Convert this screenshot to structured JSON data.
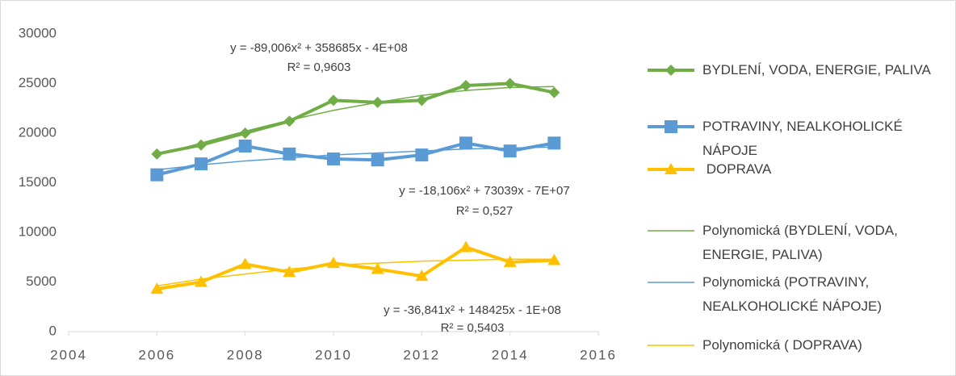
{
  "chart_data": {
    "type": "line",
    "x": [
      2006,
      2007,
      2008,
      2009,
      2010,
      2011,
      2012,
      2013,
      2014,
      2015
    ],
    "xlim": [
      2004,
      2016
    ],
    "xticks": [
      2004,
      2006,
      2008,
      2010,
      2012,
      2014,
      2016
    ],
    "ylim": [
      0,
      30000
    ],
    "yticks": [
      0,
      5000,
      10000,
      15000,
      20000,
      25000,
      30000
    ],
    "grid": false,
    "legend": "right",
    "series": [
      {
        "name": "BYDLENÍ, VODA, ENERGIE, PALIVA",
        "color": "#70ad47",
        "marker": "diamond",
        "values": [
          17900,
          18800,
          20000,
          21200,
          23300,
          23100,
          23300,
          24800,
          25000,
          24100
        ]
      },
      {
        "name": "POTRAVINY, NEALKOHOLICKÉ NÁPOJE",
        "color": "#5b9bd5",
        "marker": "square",
        "values": [
          15800,
          16900,
          18700,
          17900,
          17400,
          17300,
          17800,
          19000,
          18200,
          19000
        ]
      },
      {
        "name": " DOPRAVA",
        "color": "#ffc000",
        "marker": "triangle",
        "values": [
          4300,
          5000,
          6800,
          6000,
          6900,
          6300,
          5600,
          8500,
          7000,
          7200
        ]
      },
      {
        "name": "Polynomická (BYDLENÍ, VODA, ENERGIE, PALIVA)",
        "color": "#70ad47",
        "marker": "none",
        "values": [
          17800,
          19000,
          20200,
          21300,
          22300,
          23100,
          23800,
          24300,
          24600,
          24700
        ]
      },
      {
        "name": "Polynomická (POTRAVINY, NEALKOHOLICKÉ NÁPOJE)",
        "color": "#5b9bd5",
        "marker": "none",
        "values": [
          16300,
          16800,
          17200,
          17500,
          17800,
          18000,
          18200,
          18400,
          18500,
          18600
        ]
      },
      {
        "name": "Polynomická ( DOPRAVA)",
        "color": "#ffc000",
        "marker": "none",
        "values": [
          4600,
          5300,
          5800,
          6300,
          6700,
          6900,
          7100,
          7200,
          7300,
          7300
        ]
      }
    ],
    "annotations": [
      "y = -89,006x² + 358685x - 4E+08",
      "R² = 0,9603",
      "y = -18,106x² + 73039x - 7E+07",
      "R² = 0,527",
      "y = -36,841x² + 148425x - 1E+08",
      "R² = 0,5403"
    ]
  }
}
